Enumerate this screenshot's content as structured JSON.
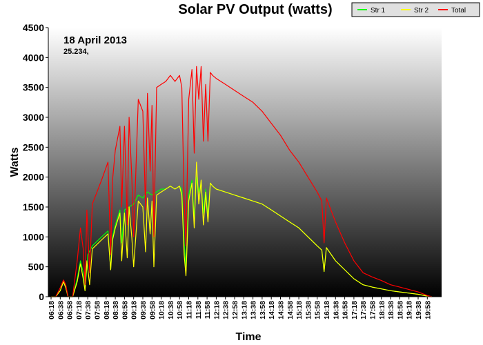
{
  "chart_data": {
    "type": "line",
    "title": "Solar PV Output (watts)",
    "annotation_date": "18 April 2013",
    "annotation_value": "25.234,",
    "xlabel": "Time",
    "ylabel": "Watts",
    "ylim": [
      0,
      4500
    ],
    "yticks": [
      0,
      500,
      1000,
      1500,
      2000,
      2500,
      3000,
      3500,
      4000,
      4500
    ],
    "x_tick_labels": [
      "06:18",
      "06:38",
      "06:58",
      "07:18",
      "07:38",
      "07:58",
      "08:18",
      "08:38",
      "08:58",
      "09:18",
      "09:38",
      "09:58",
      "10:18",
      "10:38",
      "10:58",
      "11:18",
      "11:38",
      "11:58",
      "12:18",
      "12:38",
      "12:58",
      "13:18",
      "13:38",
      "13:58",
      "14:18",
      "14:38",
      "14:58",
      "15:18",
      "15:38",
      "15:58",
      "16:18",
      "16:38",
      "16:58",
      "17:18",
      "17:38",
      "17:58",
      "18:18",
      "18:38",
      "18:58",
      "19:18",
      "19:38",
      "19:58"
    ],
    "grid": false,
    "legend_position": "top-right",
    "series": [
      {
        "name": "Str 1",
        "color": "#00ff00",
        "points": [
          [
            "06:18",
            0
          ],
          [
            "06:28",
            0
          ],
          [
            "06:38",
            100
          ],
          [
            "06:45",
            250
          ],
          [
            "06:50",
            150
          ],
          [
            "06:55",
            0
          ],
          [
            "07:05",
            0
          ],
          [
            "07:15",
            300
          ],
          [
            "07:22",
            600
          ],
          [
            "07:28",
            400
          ],
          [
            "07:32",
            100
          ],
          [
            "07:38",
            700
          ],
          [
            "07:48",
            850
          ],
          [
            "08:08",
            1000
          ],
          [
            "08:22",
            1100
          ],
          [
            "08:28",
            450
          ],
          [
            "08:32",
            1000
          ],
          [
            "08:38",
            1200
          ],
          [
            "08:48",
            1450
          ],
          [
            "08:52",
            900
          ],
          [
            "08:58",
            1450
          ],
          [
            "09:08",
            1500
          ],
          [
            "09:18",
            1550
          ],
          [
            "09:28",
            1700
          ],
          [
            "09:38",
            1650
          ],
          [
            "09:48",
            1750
          ],
          [
            "09:58",
            1700
          ],
          [
            "10:08",
            1750
          ],
          [
            "10:18",
            1800
          ],
          [
            "10:28",
            1800
          ],
          [
            "10:38",
            1850
          ],
          [
            "10:48",
            1800
          ],
          [
            "10:58",
            1850
          ],
          [
            "11:03",
            1800
          ],
          [
            "11:08",
            900
          ],
          [
            "11:12",
            500
          ],
          [
            "11:18",
            1700
          ],
          [
            "11:25",
            1950
          ],
          [
            "11:30",
            1300
          ],
          [
            "11:35",
            2000
          ],
          [
            "11:40",
            1750
          ],
          [
            "11:45",
            1900
          ],
          [
            "11:50",
            1400
          ],
          [
            "11:55",
            1800
          ],
          [
            "12:00",
            1350
          ],
          [
            "12:05",
            1900
          ],
          [
            "12:10",
            1850
          ],
          [
            "12:18",
            1800
          ],
          [
            "12:38",
            1750
          ],
          [
            "12:58",
            1700
          ],
          [
            "13:18",
            1650
          ],
          [
            "13:38",
            1600
          ],
          [
            "13:58",
            1550
          ],
          [
            "14:18",
            1450
          ],
          [
            "14:38",
            1350
          ],
          [
            "14:58",
            1250
          ],
          [
            "15:18",
            1150
          ],
          [
            "15:38",
            1000
          ],
          [
            "15:58",
            850
          ],
          [
            "16:08",
            780
          ],
          [
            "16:13",
            420
          ],
          [
            "16:18",
            820
          ],
          [
            "16:38",
            600
          ],
          [
            "16:58",
            450
          ],
          [
            "17:18",
            300
          ],
          [
            "17:38",
            200
          ],
          [
            "17:58",
            160
          ],
          [
            "18:18",
            130
          ],
          [
            "18:38",
            100
          ],
          [
            "18:58",
            80
          ],
          [
            "19:18",
            60
          ],
          [
            "19:38",
            40
          ],
          [
            "19:58",
            10
          ],
          [
            "20:08",
            0
          ]
        ]
      },
      {
        "name": "Str 2",
        "color": "#ffff00",
        "points": [
          [
            "06:18",
            0
          ],
          [
            "06:28",
            0
          ],
          [
            "06:38",
            100
          ],
          [
            "06:45",
            250
          ],
          [
            "06:50",
            150
          ],
          [
            "06:55",
            0
          ],
          [
            "07:05",
            0
          ],
          [
            "07:15",
            250
          ],
          [
            "07:22",
            550
          ],
          [
            "07:28",
            300
          ],
          [
            "07:32",
            100
          ],
          [
            "07:36",
            600
          ],
          [
            "07:42",
            200
          ],
          [
            "07:48",
            800
          ],
          [
            "08:08",
            950
          ],
          [
            "08:22",
            1050
          ],
          [
            "08:28",
            450
          ],
          [
            "08:32",
            950
          ],
          [
            "08:38",
            1150
          ],
          [
            "08:48",
            1400
          ],
          [
            "08:52",
            600
          ],
          [
            "08:58",
            1400
          ],
          [
            "09:04",
            650
          ],
          [
            "09:08",
            1500
          ],
          [
            "09:14",
            1000
          ],
          [
            "09:18",
            500
          ],
          [
            "09:28",
            1600
          ],
          [
            "09:38",
            1500
          ],
          [
            "09:44",
            750
          ],
          [
            "09:48",
            1650
          ],
          [
            "09:54",
            1050
          ],
          [
            "09:58",
            1600
          ],
          [
            "10:02",
            500
          ],
          [
            "10:08",
            1700
          ],
          [
            "10:18",
            1750
          ],
          [
            "10:28",
            1800
          ],
          [
            "10:38",
            1850
          ],
          [
            "10:48",
            1800
          ],
          [
            "10:58",
            1850
          ],
          [
            "11:03",
            1700
          ],
          [
            "11:08",
            700
          ],
          [
            "11:12",
            350
          ],
          [
            "11:18",
            1600
          ],
          [
            "11:25",
            1900
          ],
          [
            "11:30",
            1150
          ],
          [
            "11:35",
            2250
          ],
          [
            "11:40",
            1550
          ],
          [
            "11:45",
            1950
          ],
          [
            "11:50",
            1200
          ],
          [
            "11:55",
            1750
          ],
          [
            "12:00",
            1250
          ],
          [
            "12:05",
            1900
          ],
          [
            "12:10",
            1850
          ],
          [
            "12:18",
            1800
          ],
          [
            "12:38",
            1750
          ],
          [
            "12:58",
            1700
          ],
          [
            "13:18",
            1650
          ],
          [
            "13:38",
            1600
          ],
          [
            "13:58",
            1550
          ],
          [
            "14:18",
            1450
          ],
          [
            "14:38",
            1350
          ],
          [
            "14:58",
            1250
          ],
          [
            "15:18",
            1150
          ],
          [
            "15:38",
            1000
          ],
          [
            "15:58",
            850
          ],
          [
            "16:08",
            780
          ],
          [
            "16:13",
            420
          ],
          [
            "16:18",
            820
          ],
          [
            "16:38",
            600
          ],
          [
            "16:58",
            450
          ],
          [
            "17:18",
            300
          ],
          [
            "17:38",
            200
          ],
          [
            "17:58",
            160
          ],
          [
            "18:18",
            130
          ],
          [
            "18:38",
            100
          ],
          [
            "18:58",
            80
          ],
          [
            "19:18",
            60
          ],
          [
            "19:38",
            40
          ],
          [
            "19:58",
            10
          ],
          [
            "20:08",
            0
          ]
        ]
      },
      {
        "name": "Total",
        "color": "#ff0000",
        "points": [
          [
            "06:18",
            0
          ],
          [
            "06:28",
            0
          ],
          [
            "06:38",
            150
          ],
          [
            "06:45",
            280
          ],
          [
            "06:50",
            200
          ],
          [
            "06:55",
            0
          ],
          [
            "07:05",
            0
          ],
          [
            "07:15",
            600
          ],
          [
            "07:22",
            1150
          ],
          [
            "07:28",
            800
          ],
          [
            "07:32",
            200
          ],
          [
            "07:36",
            1450
          ],
          [
            "07:42",
            400
          ],
          [
            "07:48",
            1550
          ],
          [
            "08:08",
            1950
          ],
          [
            "08:22",
            2250
          ],
          [
            "08:28",
            700
          ],
          [
            "08:32",
            1950
          ],
          [
            "08:38",
            2450
          ],
          [
            "08:48",
            2850
          ],
          [
            "08:52",
            1500
          ],
          [
            "08:58",
            2850
          ],
          [
            "09:04",
            1200
          ],
          [
            "09:08",
            3000
          ],
          [
            "09:14",
            2000
          ],
          [
            "09:18",
            1000
          ],
          [
            "09:28",
            3300
          ],
          [
            "09:38",
            3100
          ],
          [
            "09:44",
            1450
          ],
          [
            "09:48",
            3400
          ],
          [
            "09:54",
            2100
          ],
          [
            "09:58",
            3200
          ],
          [
            "10:02",
            1000
          ],
          [
            "10:08",
            3500
          ],
          [
            "10:18",
            3550
          ],
          [
            "10:28",
            3600
          ],
          [
            "10:38",
            3700
          ],
          [
            "10:48",
            3600
          ],
          [
            "10:58",
            3700
          ],
          [
            "11:03",
            3500
          ],
          [
            "11:08",
            1600
          ],
          [
            "11:12",
            850
          ],
          [
            "11:18",
            3300
          ],
          [
            "11:25",
            3800
          ],
          [
            "11:30",
            2400
          ],
          [
            "11:35",
            3850
          ],
          [
            "11:40",
            3300
          ],
          [
            "11:45",
            3850
          ],
          [
            "11:50",
            2600
          ],
          [
            "11:55",
            3550
          ],
          [
            "12:00",
            2600
          ],
          [
            "12:05",
            3750
          ],
          [
            "12:10",
            3700
          ],
          [
            "12:18",
            3650
          ],
          [
            "12:38",
            3550
          ],
          [
            "12:58",
            3450
          ],
          [
            "13:18",
            3350
          ],
          [
            "13:38",
            3250
          ],
          [
            "13:58",
            3100
          ],
          [
            "14:18",
            2900
          ],
          [
            "14:38",
            2700
          ],
          [
            "14:58",
            2450
          ],
          [
            "15:18",
            2250
          ],
          [
            "15:38",
            2000
          ],
          [
            "15:58",
            1750
          ],
          [
            "16:08",
            1600
          ],
          [
            "16:13",
            900
          ],
          [
            "16:18",
            1650
          ],
          [
            "16:38",
            1250
          ],
          [
            "16:58",
            900
          ],
          [
            "17:18",
            600
          ],
          [
            "17:38",
            400
          ],
          [
            "17:58",
            330
          ],
          [
            "18:18",
            270
          ],
          [
            "18:38",
            200
          ],
          [
            "18:58",
            160
          ],
          [
            "19:18",
            120
          ],
          [
            "19:38",
            80
          ],
          [
            "19:58",
            20
          ],
          [
            "20:08",
            0
          ]
        ]
      }
    ]
  }
}
